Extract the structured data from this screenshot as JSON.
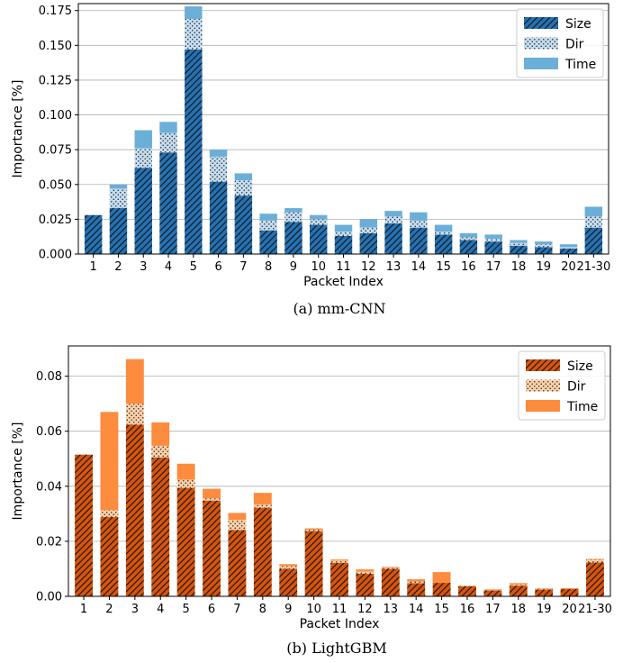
{
  "chart_data": [
    {
      "type": "bar",
      "stacked": true,
      "caption": "(a) mm-CNN",
      "xlabel": "Packet Index",
      "ylabel": "Importance [%]",
      "ylim": [
        0,
        0.18
      ],
      "yticks": [
        0.0,
        0.025,
        0.05,
        0.075,
        0.1,
        0.125,
        0.15,
        0.175
      ],
      "ytick_labels": [
        "0.000",
        "0.025",
        "0.050",
        "0.075",
        "0.100",
        "0.125",
        "0.150",
        "0.175"
      ],
      "grid": "horizontal",
      "legend_position": "top-right",
      "colors": {
        "dark": "#2372b5",
        "light": "#c4dcef",
        "time": "#6bafd8"
      },
      "categories": [
        "1",
        "2",
        "3",
        "4",
        "5",
        "6",
        "7",
        "8",
        "9",
        "10",
        "11",
        "12",
        "13",
        "14",
        "15",
        "16",
        "17",
        "18",
        "19",
        "20",
        "21-30"
      ],
      "series": [
        {
          "name": "Size",
          "pattern": "hatch",
          "values": [
            0.028,
            0.033,
            0.062,
            0.073,
            0.147,
            0.052,
            0.042,
            0.017,
            0.023,
            0.021,
            0.013,
            0.015,
            0.022,
            0.019,
            0.014,
            0.01,
            0.009,
            0.006,
            0.005,
            0.004,
            0.019
          ]
        },
        {
          "name": "Dir",
          "pattern": "dots",
          "values": [
            0.0,
            0.014,
            0.014,
            0.014,
            0.022,
            0.018,
            0.011,
            0.007,
            0.007,
            0.004,
            0.003,
            0.004,
            0.005,
            0.005,
            0.002,
            0.002,
            0.002,
            0.002,
            0.002,
            0.001,
            0.008
          ]
        },
        {
          "name": "Time",
          "pattern": "solid",
          "values": [
            0.0,
            0.003,
            0.013,
            0.008,
            0.009,
            0.005,
            0.005,
            0.005,
            0.003,
            0.003,
            0.005,
            0.006,
            0.004,
            0.006,
            0.005,
            0.003,
            0.003,
            0.002,
            0.002,
            0.002,
            0.007
          ]
        }
      ]
    },
    {
      "type": "bar",
      "stacked": true,
      "caption": "(b) LightGBM",
      "xlabel": "Packet Index",
      "ylabel": "Importance [%]",
      "ylim": [
        0,
        0.091
      ],
      "yticks": [
        0.0,
        0.02,
        0.04,
        0.06,
        0.08
      ],
      "ytick_labels": [
        "0.00",
        "0.02",
        "0.04",
        "0.06",
        "0.08"
      ],
      "grid": "horizontal",
      "legend_position": "top-right",
      "colors": {
        "dark": "#d9540b",
        "light": "#fcd0a8",
        "time": "#fd8c3e"
      },
      "categories": [
        "1",
        "2",
        "3",
        "4",
        "5",
        "6",
        "7",
        "8",
        "9",
        "10",
        "11",
        "12",
        "13",
        "14",
        "15",
        "16",
        "17",
        "18",
        "19",
        "20",
        "21-30"
      ],
      "series": [
        {
          "name": "Size",
          "pattern": "hatch",
          "values": [
            0.0515,
            0.0288,
            0.0624,
            0.0505,
            0.0394,
            0.0348,
            0.0241,
            0.0322,
            0.01,
            0.0237,
            0.0122,
            0.0082,
            0.01,
            0.0048,
            0.0049,
            0.0036,
            0.0022,
            0.0039,
            0.0025,
            0.0027,
            0.0123
          ]
        },
        {
          "name": "Dir",
          "pattern": "dots",
          "values": [
            0.0,
            0.0025,
            0.0076,
            0.0042,
            0.003,
            0.0008,
            0.0037,
            0.0012,
            0.001,
            0.0005,
            0.0008,
            0.0008,
            0.0004,
            0.0006,
            0.0,
            0.0002,
            0.0002,
            0.0004,
            0.0002,
            0.0,
            0.001
          ]
        },
        {
          "name": "Time",
          "pattern": "solid",
          "values": [
            0.0,
            0.0357,
            0.0162,
            0.0085,
            0.0058,
            0.0035,
            0.0025,
            0.0042,
            0.0007,
            0.0005,
            0.0004,
            0.0008,
            0.0003,
            0.0008,
            0.0039,
            0.0001,
            0.0002,
            0.0005,
            0.0002,
            0.0003,
            0.0003
          ]
        }
      ]
    }
  ]
}
